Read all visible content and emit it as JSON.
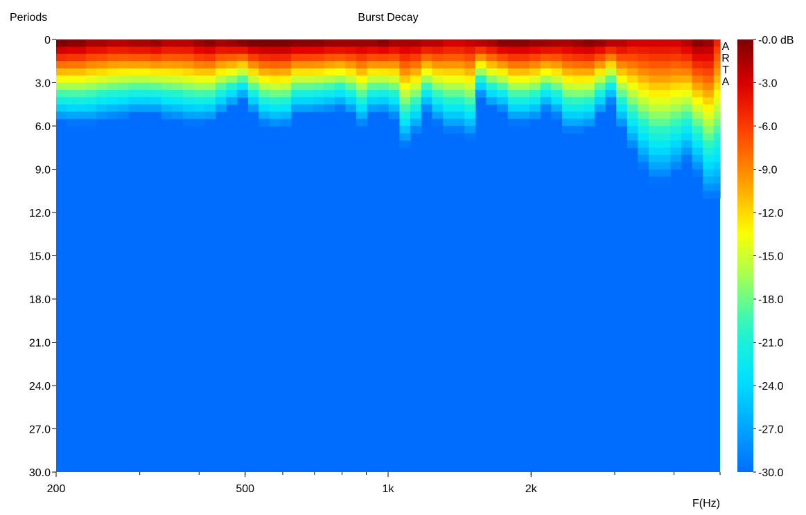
{
  "chart_data": {
    "type": "heatmap",
    "title": "Burst Decay",
    "ylabel": "Periods",
    "xlabel": "F(Hz)",
    "watermark": "ARTA",
    "x_scale": "log",
    "xlim": [
      200,
      5000
    ],
    "ylim": [
      0,
      30
    ],
    "y_reversed": true,
    "x_ticks": [
      200,
      500,
      1000,
      2000
    ],
    "x_tick_labels": [
      "200",
      "500",
      "1k",
      "2k"
    ],
    "y_ticks": [
      0,
      3,
      6,
      9,
      12,
      15,
      18,
      21,
      24,
      27,
      30
    ],
    "y_tick_labels": [
      "0",
      "3.0",
      "6.0",
      "9.0",
      "12.0",
      "15.0",
      "18.0",
      "21.0",
      "24.0",
      "27.0",
      "30.0"
    ],
    "colorbar": {
      "unit": "dB",
      "range": [
        -30,
        0
      ],
      "ticks": [
        0,
        -3,
        -6,
        -9,
        -12,
        -15,
        -18,
        -21,
        -24,
        -27,
        -30
      ],
      "tick_labels": [
        "-0.0 dB",
        "-3.0",
        "-6.0",
        "-9.0",
        "-12.0",
        "-15.0",
        "-18.0",
        "-21.0",
        "-24.0",
        "-27.0",
        "-30.0"
      ],
      "colors": [
        "#7f0000",
        "#e10000",
        "#ff4a00",
        "#ffa000",
        "#ffff00",
        "#9cff5c",
        "#27f5c8",
        "#00e5ff",
        "#00aaff",
        "#006dff"
      ]
    },
    "series": [
      {
        "frequencies_hz": [
          200,
          210,
          220,
          231,
          243,
          256,
          270,
          284,
          300,
          316,
          333,
          351,
          370,
          390,
          411,
          433,
          456,
          481,
          507,
          534,
          563,
          593,
          625,
          659,
          695,
          732,
          772,
          813,
          857,
          903,
          952,
          1003,
          1057,
          1114,
          1174,
          1237,
          1304,
          1374,
          1448,
          1526,
          1609,
          1695,
          1787,
          1883,
          1985,
          2092,
          2205,
          2324,
          2449,
          2581,
          2720,
          2867,
          3022,
          3185,
          3356,
          3537,
          3728,
          3929,
          4141,
          4365,
          4600,
          4848,
          5000
        ],
        "decay_to_floor_periods": [
          5.5,
          5.6,
          5.6,
          5.6,
          5.4,
          5.3,
          5.2,
          5.0,
          5.0,
          5.0,
          5.3,
          5.4,
          5.6,
          5.6,
          5.5,
          5.0,
          4.5,
          4.0,
          4.9,
          5.7,
          5.9,
          5.8,
          5.0,
          5.0,
          4.9,
          4.8,
          4.6,
          5.0,
          5.8,
          5.0,
          4.9,
          5.3,
          7.2,
          6.3,
          4.8,
          5.6,
          6.2,
          6.2,
          6.6,
          3.8,
          4.5,
          4.8,
          5.6,
          5.6,
          5.4,
          4.7,
          5.2,
          6.2,
          6.2,
          6.0,
          5.0,
          4.2,
          6.0,
          7.5,
          8.7,
          9.6,
          9.6,
          9.0,
          8.2,
          9.2,
          10.8,
          10.8,
          11.0
        ],
        "peak_level_db": [
          0,
          -0.5,
          -0.5,
          -1.5,
          -1.5,
          -2,
          -2,
          -1.5,
          -1.5,
          -1,
          -2,
          -2,
          -2,
          -1,
          -0.5,
          -1.5,
          -1,
          -0.5,
          0,
          0,
          0,
          0,
          -0.5,
          -0.5,
          -0.5,
          -1,
          -1,
          -1,
          -1,
          -1,
          -0.5,
          -1.5,
          -1.5,
          -1.5,
          -2,
          -2,
          -3,
          -3,
          -2.5,
          -2,
          -1.5,
          -0.5,
          -0.5,
          -0.5,
          -1,
          -1,
          -1.5,
          -1.5,
          -1,
          -0.5,
          -1,
          -2,
          -2,
          -3,
          -3,
          -3,
          -3,
          -3,
          -2,
          -0.5,
          -1,
          -5,
          -5
        ]
      }
    ]
  }
}
